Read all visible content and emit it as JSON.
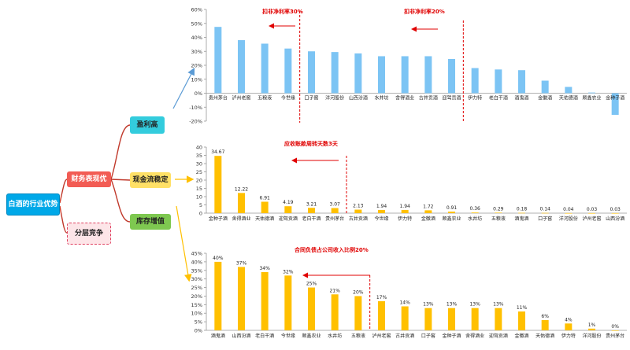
{
  "mindmap": {
    "root": "白酒的行业优势",
    "finance": "财务表现优",
    "layer": "分层竞争",
    "profit": "盈利高",
    "cash": "现金流稳定",
    "stock": "库存增值"
  },
  "colors": {
    "blue_bar": "#7cc4f4",
    "gold_bar": "#ffc000",
    "annotation": "#e00000",
    "mind_line": "#c0392b",
    "arrow_blue": "#5b9bd5",
    "arrow_gold": "#ffc000"
  },
  "chart_data": [
    {
      "type": "bar",
      "title": "",
      "annotations": [
        "扣非净利率30%",
        "扣非净利率20%"
      ],
      "categories": [
        "贵州茅台",
        "泸州老窖",
        "五粮液",
        "今世缘",
        "口子窖",
        "洋河股份",
        "山西汾酒",
        "水井坊",
        "舍得酒业",
        "古井贡酒",
        "迎驾贡酒",
        "伊力特",
        "老白干酒",
        "酒鬼酒",
        "金徽酒",
        "天佑德酒",
        "顺鑫农业",
        "金种子酒"
      ],
      "values": [
        47.5,
        38,
        35.5,
        32,
        30,
        29.5,
        28.5,
        26.5,
        26.5,
        26.5,
        24.5,
        18,
        17,
        16.5,
        9,
        4.5,
        0.5,
        -15.5
      ],
      "ylim": [
        -20,
        60
      ],
      "yticks": [
        "60%",
        "50%",
        "40%",
        "30%",
        "20%",
        "10%",
        "0%",
        "-10%",
        "-20%"
      ],
      "grid": false
    },
    {
      "type": "bar",
      "title": "",
      "annotations": [
        "应收账款周转天数3天"
      ],
      "categories": [
        "金种子酒",
        "舍得酒业",
        "天佑德酒",
        "迎驾贡酒",
        "老白干酒",
        "贵州茅台",
        "古井贡酒",
        "今世缘",
        "伊力特",
        "金徽酒",
        "顺鑫农业",
        "水井坊",
        "五粮液",
        "酒鬼酒",
        "口子窖",
        "洋河股份",
        "泸州老窖",
        "山西汾酒"
      ],
      "values": [
        34.67,
        12.22,
        6.91,
        4.19,
        3.21,
        3.07,
        2.13,
        1.94,
        1.94,
        1.72,
        0.91,
        0.36,
        0.29,
        0.18,
        0.14,
        0.04,
        0.03,
        0.03
      ],
      "data_labels": [
        "34.67",
        "12.22",
        "6.91",
        "4.19",
        "3.21",
        "3.07",
        "2.13",
        "1.94",
        "1.94",
        "1.72",
        "0.91",
        "0.36",
        "0.29",
        "0.18",
        "0.14",
        "0.04",
        "0.03",
        "0.03"
      ],
      "ylim": [
        0,
        40
      ],
      "yticks": [
        "40",
        "35",
        "30",
        "25",
        "20",
        "15",
        "10",
        "5",
        "0"
      ],
      "grid": false
    },
    {
      "type": "bar",
      "title": "",
      "annotations": [
        "合同负债占公司收入比例20%"
      ],
      "categories": [
        "酒鬼酒",
        "山西汾酒",
        "老白干酒",
        "今世缘",
        "顺鑫农业",
        "水井坊",
        "五粮液",
        "泸州老窖",
        "古井贡酒",
        "口子窖",
        "金种子酒",
        "舍得酒业",
        "迎驾贡酒",
        "金徽酒",
        "天佑德酒",
        "伊力特",
        "洋河股份",
        "贵州茅台"
      ],
      "values": [
        40,
        37,
        34,
        32,
        25,
        21,
        20,
        17,
        14,
        13,
        13,
        13,
        13,
        11,
        6,
        4,
        1,
        0
      ],
      "data_labels": [
        "40%",
        "37%",
        "34%",
        "32%",
        "25%",
        "21%",
        "20%",
        "17%",
        "14%",
        "13%",
        "13%",
        "13%",
        "13%",
        "11%",
        "6%",
        "4%",
        "1%",
        "0%"
      ],
      "ylim": [
        0,
        45
      ],
      "yticks": [
        "45%",
        "40%",
        "35%",
        "30%",
        "25%",
        "20%",
        "15%",
        "10%",
        "5%",
        "0%"
      ],
      "grid": false
    }
  ]
}
